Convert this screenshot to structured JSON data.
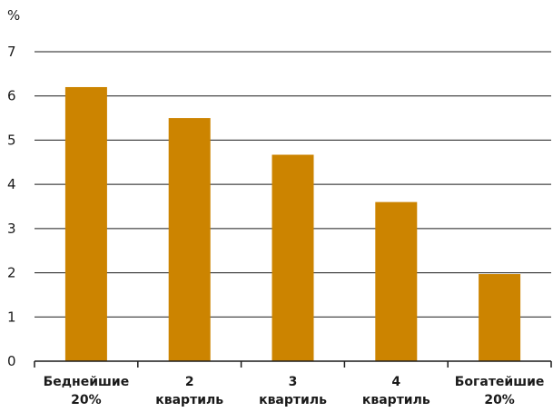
{
  "chart_data": {
    "type": "bar",
    "unit_label": "%",
    "categories": [
      [
        "Беднейшие",
        "20%"
      ],
      [
        "2",
        "квартиль"
      ],
      [
        "3",
        "квартиль"
      ],
      [
        "4",
        "квартиль"
      ],
      [
        "Богатейшие",
        "20%"
      ]
    ],
    "values": [
      6.2,
      5.5,
      4.67,
      3.6,
      1.97
    ],
    "ylim": [
      0,
      7
    ],
    "yticks": [
      0,
      1,
      2,
      3,
      4,
      5,
      6,
      7
    ],
    "grid": true,
    "bar_color": "#cc8400",
    "grid_color": "#1a1a1a"
  }
}
